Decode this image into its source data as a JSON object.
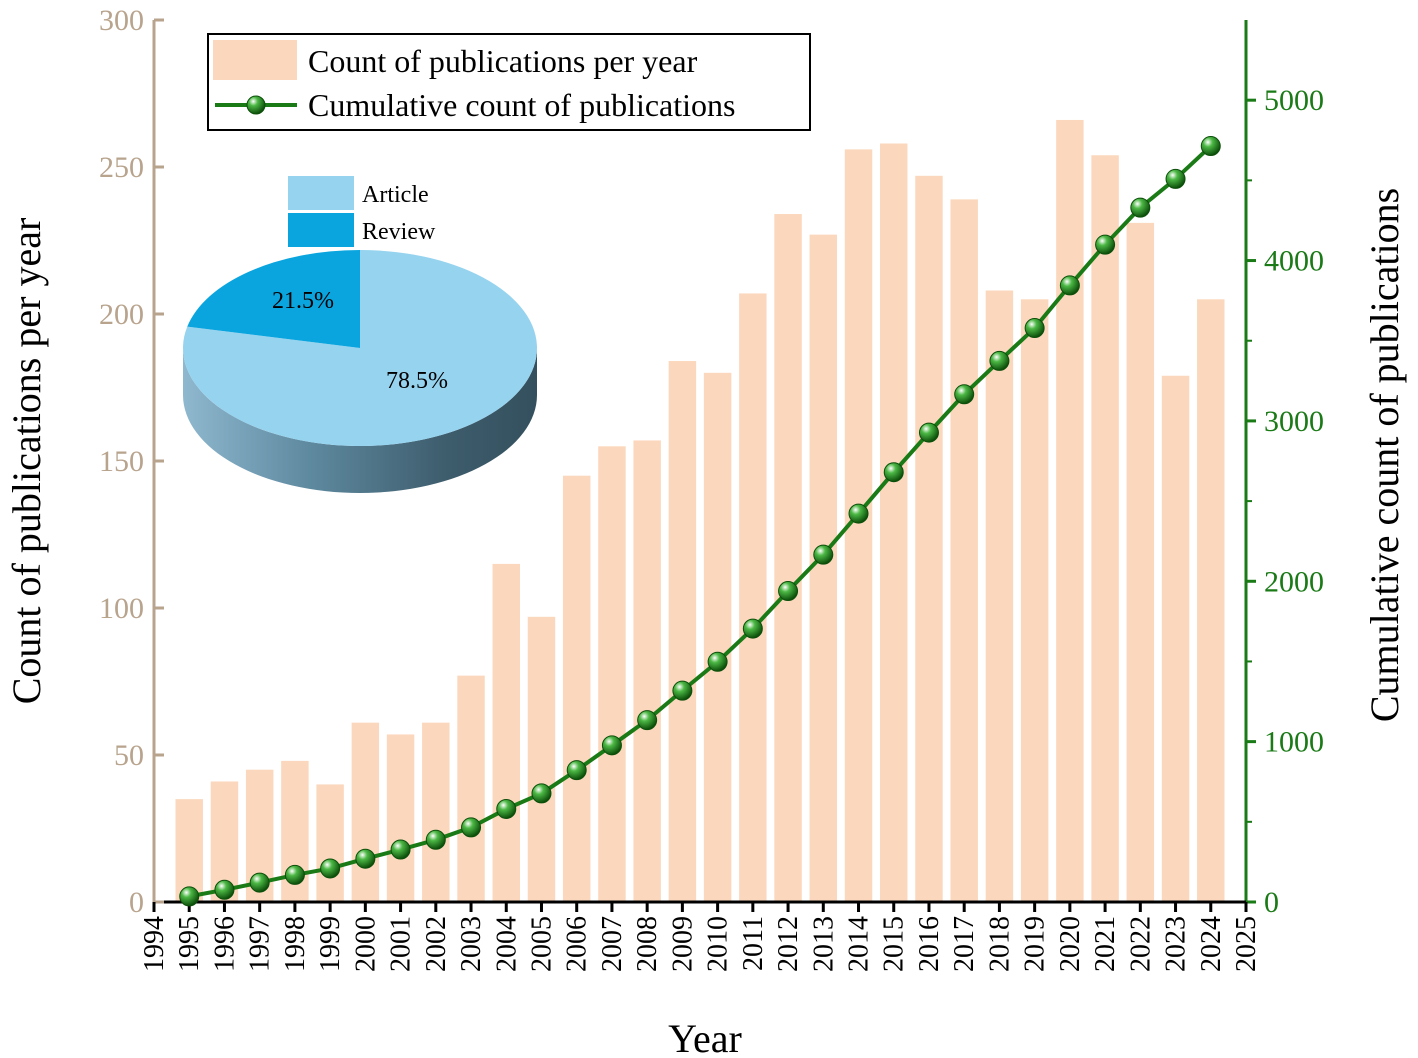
{
  "chart_data": {
    "type": "bar+line",
    "x_title": "Year",
    "y_left_title": "Count of publications per year",
    "y_right_title": "Cumulative count of publications",
    "x_range": [
      1994,
      2025
    ],
    "y_left_range": [
      0,
      300
    ],
    "y_right_range": [
      0,
      5500
    ],
    "x_ticks": [
      "1994",
      "1995",
      "1996",
      "1997",
      "1998",
      "1999",
      "2000",
      "2001",
      "2002",
      "2003",
      "2004",
      "2005",
      "2006",
      "2007",
      "2008",
      "2009",
      "2010",
      "2011",
      "2012",
      "2013",
      "2014",
      "2015",
      "2016",
      "2017",
      "2018",
      "2019",
      "2020",
      "2021",
      "2022",
      "2023",
      "2024",
      "2025"
    ],
    "y_left_ticks": [
      "0",
      "50",
      "100",
      "150",
      "200",
      "250",
      "300"
    ],
    "y_right_ticks": [
      "0",
      "1000",
      "2000",
      "3000",
      "4000",
      "5000"
    ],
    "years": [
      1995,
      1996,
      1997,
      1998,
      1999,
      2000,
      2001,
      2002,
      2003,
      2004,
      2005,
      2006,
      2007,
      2008,
      2009,
      2010,
      2011,
      2012,
      2013,
      2014,
      2015,
      2016,
      2017,
      2018,
      2019,
      2020,
      2021,
      2022,
      2023,
      2024
    ],
    "series": [
      {
        "name": "Count of publications per year",
        "type": "bar",
        "axis": "left",
        "color": "#fbd8bd",
        "values": [
          35,
          41,
          45,
          48,
          40,
          61,
          57,
          61,
          77,
          115,
          97,
          145,
          155,
          157,
          184,
          180,
          207,
          234,
          227,
          256,
          258,
          247,
          239,
          208,
          205,
          266,
          254,
          231,
          179,
          205
        ]
      },
      {
        "name": "Cumulative count of publications",
        "type": "line",
        "axis": "right",
        "color": "#1a7a16",
        "values": [
          35,
          76,
          121,
          169,
          209,
          270,
          327,
          388,
          465,
          580,
          677,
          822,
          977,
          1134,
          1318,
          1498,
          1705,
          1939,
          2166,
          2422,
          2680,
          2927,
          3166,
          3374,
          3579,
          3845,
          4099,
          4330,
          4509,
          4714
        ]
      }
    ],
    "legend": [
      {
        "label": "Count of publications per year"
      },
      {
        "label": "Cumulative count of publications"
      }
    ],
    "inset_pie": {
      "type": "pie",
      "slices": [
        {
          "label": "Article",
          "value": 78.5,
          "text": "78.5%",
          "color": "#96d3ef"
        },
        {
          "label": "Review",
          "value": 21.5,
          "text": "21.5%",
          "color": "#0aa5df"
        }
      ]
    },
    "colors": {
      "left_axis": "#b8a38d",
      "right_axis": "#1a7a16",
      "bottom_axis": "#000000"
    }
  }
}
